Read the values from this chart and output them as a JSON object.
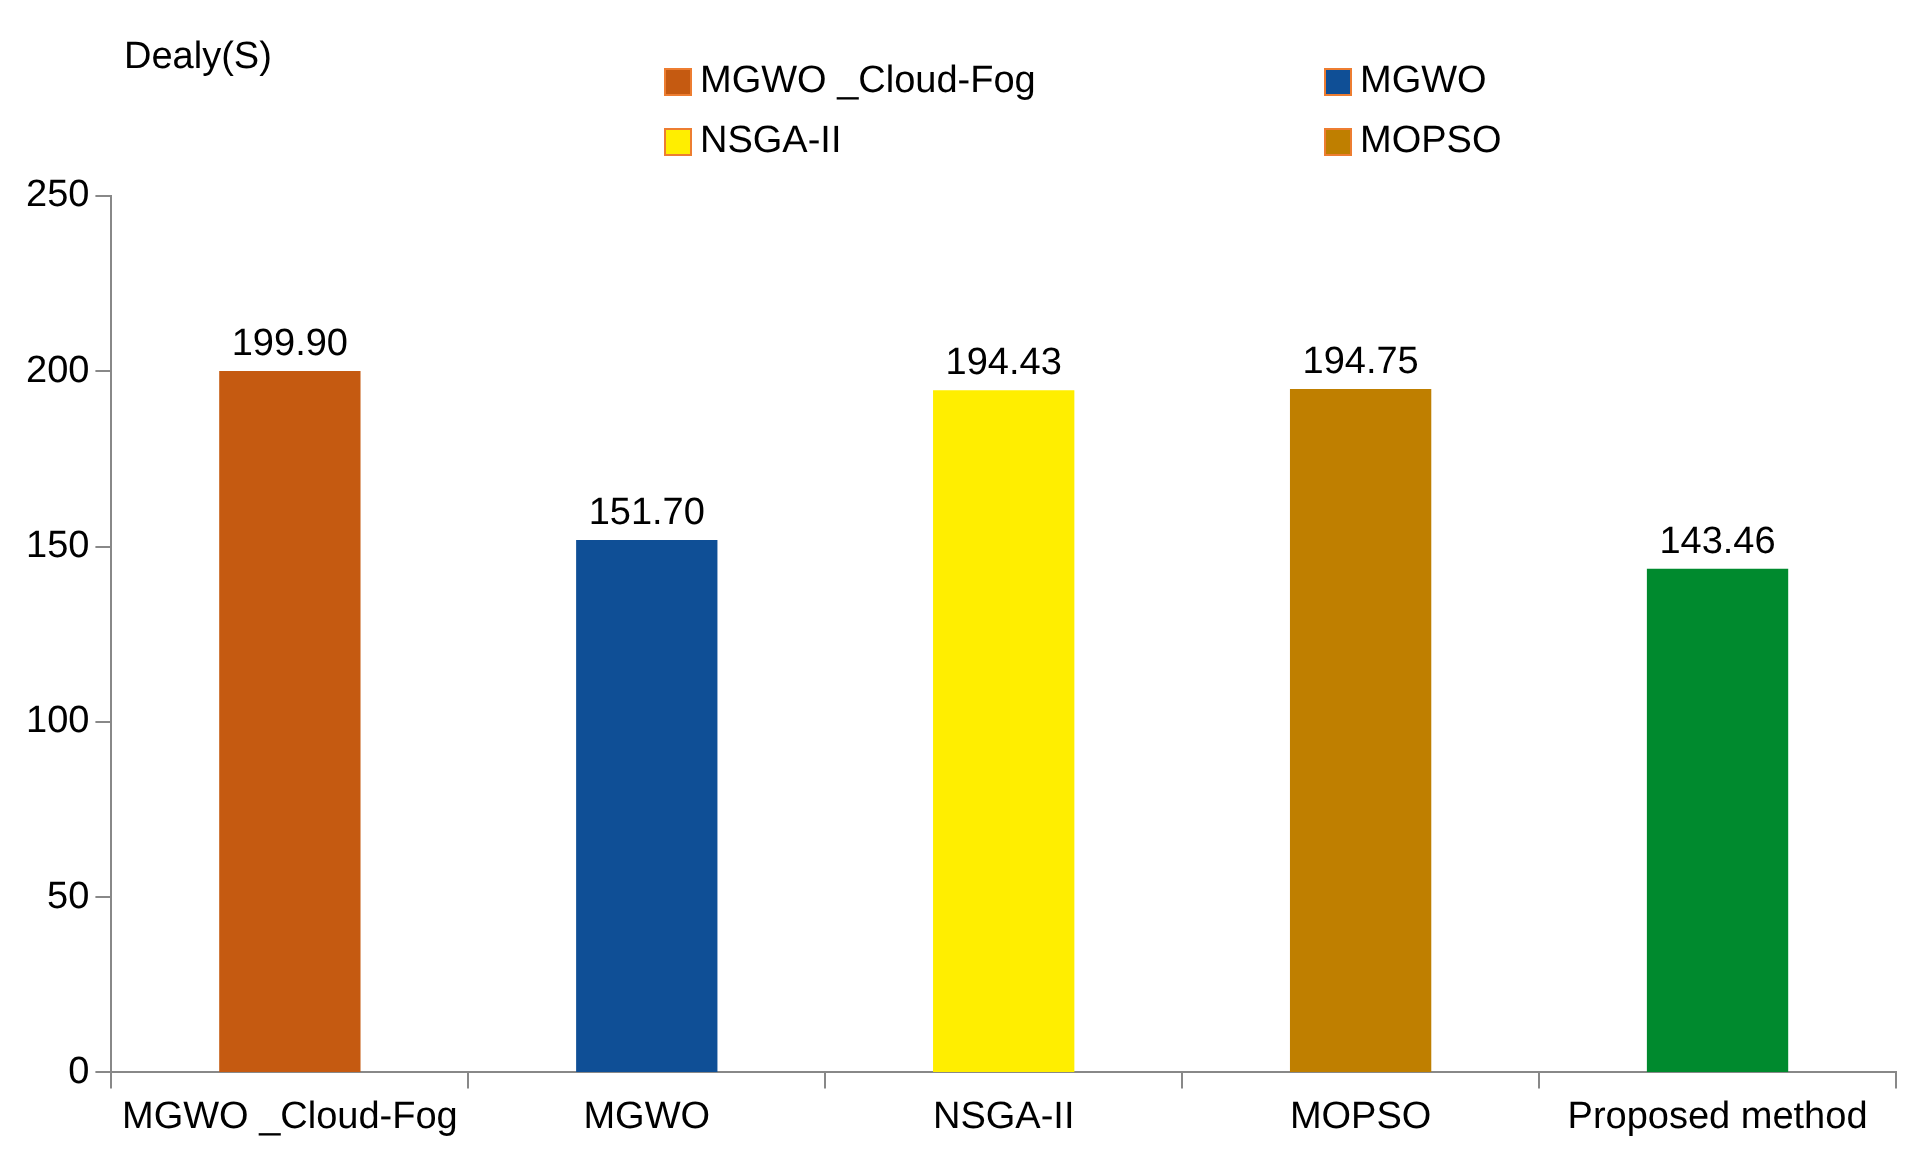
{
  "chart_data": {
    "type": "bar",
    "ylabel": "Dealy(S)",
    "categories": [
      "MGWO _Cloud-Fog",
      "MGWO",
      "NSGA-II",
      "MOPSO",
      "Proposed method"
    ],
    "series": [
      {
        "name": "MGWO _Cloud-Fog",
        "color": "#c55a11",
        "values": [
          199.9,
          null,
          null,
          null,
          null
        ],
        "value_labels": [
          "199.90",
          null,
          null,
          null,
          null
        ]
      },
      {
        "name": "MGWO",
        "color": "#0f4f96",
        "values": [
          null,
          151.7,
          null,
          null,
          null
        ],
        "value_labels": [
          null,
          "151.70",
          null,
          null,
          null
        ]
      },
      {
        "name": "NSGA-II",
        "color": "#ffee00",
        "values": [
          null,
          null,
          194.43,
          null,
          null
        ],
        "value_labels": [
          null,
          null,
          "194.43",
          null,
          null
        ]
      },
      {
        "name": "MOPSO",
        "color": "#bf7f00",
        "values": [
          null,
          null,
          null,
          194.75,
          null
        ],
        "value_labels": [
          null,
          null,
          null,
          "194.75",
          null
        ]
      },
      {
        "color": "#008a2e",
        "values": [
          null,
          null,
          null,
          null,
          143.46
        ],
        "value_labels": [
          null,
          null,
          null,
          null,
          "143.46"
        ]
      }
    ],
    "ylim": [
      0,
      250
    ],
    "yticks": [
      0,
      50,
      100,
      150,
      200,
      250
    ],
    "grid": false,
    "legend": "top"
  }
}
